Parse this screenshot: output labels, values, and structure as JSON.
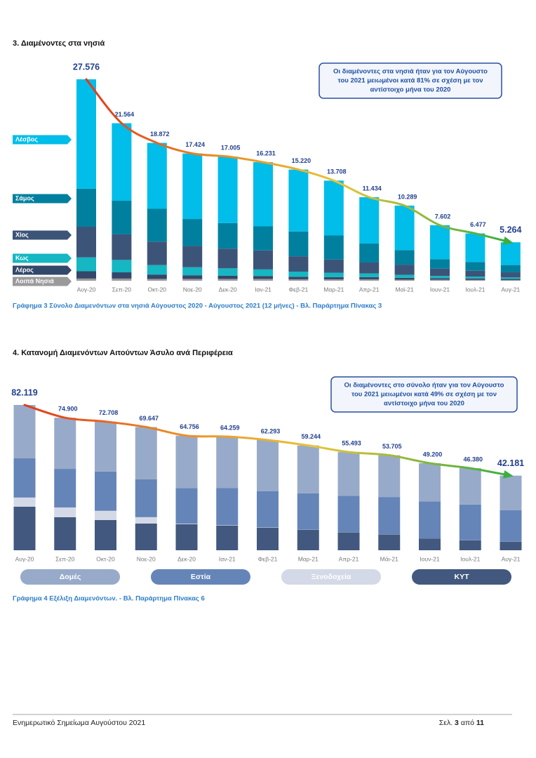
{
  "chart_data": [
    {
      "type": "bar",
      "stacked": true,
      "legend": "left",
      "trend": true,
      "heading": "3.  Διαμένοντες στα νησιά",
      "annotation": [
        "Οι διαμένοντες στα νησιά ήταν για τον Αύγουστο",
        "του 2021 μειωμένοι κατά 81% σε σχέση με τον",
        "αντίστοιχο μήνα του 2020"
      ],
      "caption": "Γράφημα 3 Σύνολο Διαμενόντων στα νησιά Αύγουστος 2020 - Αύγουστος 2021 (12 μήνες) - Βλ. Παράρτημα Πίνακας 3",
      "categories": [
        "Αυγ-20",
        "Σεπ-20",
        "Οκτ-20",
        "Νοε-20",
        "Δεκ-20",
        "Ιαν-21",
        "Φεβ-21",
        "Μαρ-21",
        "Απρ-21",
        "Μαϊ-21",
        "Ιουν-21",
        "Ιουλ-21",
        "Αυγ-21"
      ],
      "series": [
        {
          "name": "Λέσβος",
          "color": "#00bde9",
          "values": [
            14976,
            10614,
            9022,
            8974,
            9105,
            8781,
            8470,
            7508,
            6334,
            6089,
            4652,
            3907,
            3114
          ]
        },
        {
          "name": "Σάμος",
          "color": "#00809e",
          "values": [
            5200,
            4600,
            4500,
            3700,
            3500,
            3300,
            3400,
            3300,
            2600,
            2000,
            1300,
            1200,
            1000
          ]
        },
        {
          "name": "Χίος",
          "color": "#3d5479",
          "values": [
            4200,
            3500,
            3200,
            2900,
            2700,
            2600,
            2100,
            1800,
            1500,
            1400,
            1000,
            800,
            700
          ]
        },
        {
          "name": "Κως",
          "color": "#14b7c2",
          "values": [
            1900,
            1700,
            1300,
            1100,
            1000,
            900,
            700,
            600,
            500,
            400,
            300,
            250,
            200
          ]
        },
        {
          "name": "Λέρος",
          "color": "#33476a",
          "values": [
            1000,
            850,
            600,
            500,
            450,
            400,
            350,
            300,
            300,
            250,
            200,
            200,
            150
          ]
        },
        {
          "name": "Λοιπά Νησιά",
          "color": "#9a9a9a",
          "values": [
            300,
            300,
            250,
            250,
            250,
            250,
            200,
            200,
            200,
            150,
            150,
            120,
            100
          ]
        }
      ],
      "totals": [
        27576,
        21564,
        18872,
        17424,
        17005,
        16231,
        15220,
        13708,
        11434,
        10289,
        7602,
        6477,
        5264
      ],
      "value_labels": [
        "27.576",
        "21.564",
        "18.872",
        "17.424",
        "17.005",
        "16.231",
        "15.220",
        "13.708",
        "11.434",
        "10.289",
        "7.602",
        "6.477",
        "5.264"
      ]
    },
    {
      "type": "bar",
      "stacked": true,
      "legend": "bottom",
      "trend": true,
      "heading": "4.  Κατανομή Διαμενόντων Αιτούντων Άσυλο ανά Περιφέρεια",
      "annotation": [
        "Οι διαμένοντες στο σύνολο ήταν για τον Αύγουστο",
        "του 2021 μειωμένοι κατά 49% σε σχέση με τον",
        "αντίστοιχο μήνα του 2020"
      ],
      "caption": "Γράφημα 4 Εξέλιξη Διαμενόντων. - Βλ. Παράρτημα Πίνακας 6",
      "categories": [
        "Αυγ-20",
        "Σεπ-20",
        "Οκτ-20",
        "Νοε-20",
        "Δεκ-20",
        "Ιαν-21",
        "Φεβ-21",
        "Μαρ-21",
        "Απρ-21",
        "Μάι-21",
        "Ιουν-21",
        "Ιουλ-21",
        "Αυγ-21"
      ],
      "series": [
        {
          "name": "Δομές",
          "color": "#98aac9",
          "values": [
            30119,
            28900,
            28208,
            29547,
            29556,
            29159,
            28843,
            27044,
            24693,
            23605,
            21650,
            20530,
            19531
          ]
        },
        {
          "name": "Εστία",
          "color": "#6585b9",
          "values": [
            22200,
            21800,
            22200,
            21400,
            20200,
            20900,
            20500,
            20600,
            20600,
            21000,
            20800,
            20200,
            17800
          ]
        },
        {
          "name": "Ξενοδοχεία",
          "color": "#d3d9e6",
          "values": [
            5200,
            5500,
            5200,
            3600,
            300,
            200,
            150,
            100,
            100,
            100,
            50,
            50,
            50
          ]
        },
        {
          "name": "ΚΥΤ",
          "color": "#42587e",
          "values": [
            24600,
            18700,
            17100,
            15100,
            14700,
            14000,
            12800,
            11500,
            10100,
            9000,
            6700,
            5600,
            4800
          ]
        }
      ],
      "totals": [
        82119,
        74900,
        72708,
        69647,
        64756,
        64259,
        62293,
        59244,
        55493,
        53705,
        49200,
        46380,
        42181
      ],
      "value_labels": [
        "82.119",
        "74.900",
        "72.708",
        "69.647",
        "64.756",
        "64.259",
        "62.293",
        "59.244",
        "55.493",
        "53.705",
        "49.200",
        "46.380",
        "42.181"
      ]
    }
  ],
  "footer": {
    "text": "Ενημερωτικό Σημείωμα Αυγούστου 2021",
    "page_label": "Σελ.",
    "page": 3,
    "page_of": "από",
    "pages": 11
  }
}
